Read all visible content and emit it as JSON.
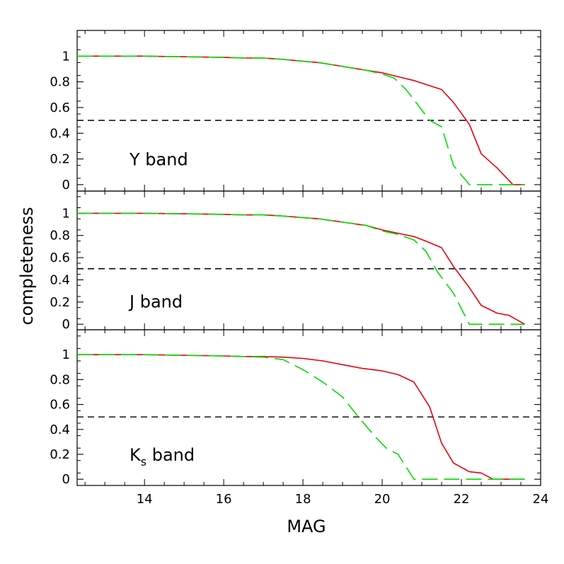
{
  "chart_data": {
    "type": "line",
    "xlabel": "MAG",
    "ylabel": "completeness",
    "xlim": [
      12.3,
      24
    ],
    "ylim": [
      -0.05,
      1.2
    ],
    "x_ticks": [
      14,
      16,
      18,
      20,
      22,
      24
    ],
    "y_ticks": [
      0,
      0.2,
      0.4,
      0.6,
      0.8,
      1
    ],
    "y_tick_labels": [
      "0",
      "0.2",
      "0.4",
      "0.6",
      "0.8",
      "1"
    ],
    "reference_line": {
      "y": 0.5,
      "color": "#000000",
      "style": "dashed"
    },
    "series_colors": {
      "solid": "#e8000b",
      "dashed": "#00dd00"
    },
    "panels": [
      {
        "label": {
          "main": "Y",
          "sub": "",
          "suffix": " band"
        },
        "series": [
          {
            "style": "solid",
            "color": "#e8000b",
            "x": [
              12.3,
              13,
              14,
              15,
              16,
              16.5,
              17,
              17.5,
              18,
              18.4,
              18.8,
              19.2,
              19.6,
              20,
              20.4,
              20.8,
              21.1,
              21.5,
              21.8,
              22.2,
              22.5,
              22.9,
              23.3,
              23.6
            ],
            "y": [
              1,
              1,
              1,
              0.995,
              0.99,
              0.985,
              0.985,
              0.975,
              0.96,
              0.95,
              0.93,
              0.91,
              0.89,
              0.87,
              0.84,
              0.81,
              0.78,
              0.74,
              0.64,
              0.47,
              0.24,
              0.13,
              0,
              0
            ]
          },
          {
            "style": "dashed",
            "color": "#00dd00",
            "x": [
              12.3,
              13,
              14,
              15,
              16,
              16.5,
              17,
              17.5,
              18,
              18.4,
              18.8,
              19.2,
              19.6,
              20,
              20.3,
              20.6,
              20.9,
              21.2,
              21.5,
              21.8,
              22.2,
              22.6,
              23,
              23.6
            ],
            "y": [
              1,
              1,
              1,
              0.995,
              0.99,
              0.985,
              0.985,
              0.975,
              0.96,
              0.95,
              0.93,
              0.91,
              0.89,
              0.86,
              0.83,
              0.74,
              0.62,
              0.5,
              0.45,
              0.15,
              0,
              0,
              0,
              0
            ]
          }
        ]
      },
      {
        "label": {
          "main": "J",
          "sub": "",
          "suffix": " band"
        },
        "series": [
          {
            "style": "solid",
            "color": "#e8000b",
            "x": [
              12.3,
              13,
              14,
              15,
              16,
              16.5,
              17,
              17.5,
              18,
              18.4,
              18.8,
              19.2,
              19.6,
              20,
              20.4,
              20.8,
              21.1,
              21.5,
              21.8,
              22.2,
              22.5,
              22.9,
              23.2,
              23.6
            ],
            "y": [
              1,
              1,
              1,
              0.995,
              0.99,
              0.985,
              0.985,
              0.975,
              0.96,
              0.95,
              0.93,
              0.91,
              0.89,
              0.85,
              0.82,
              0.79,
              0.75,
              0.69,
              0.52,
              0.33,
              0.17,
              0.1,
              0.08,
              0
            ]
          },
          {
            "style": "dashed",
            "color": "#00dd00",
            "x": [
              12.3,
              13,
              14,
              15,
              16,
              16.5,
              17,
              17.5,
              18,
              18.4,
              18.8,
              19.2,
              19.6,
              20,
              20.4,
              20.8,
              21.1,
              21.4,
              21.8,
              22.2,
              22.6,
              23,
              23.6
            ],
            "y": [
              1,
              1,
              1,
              0.995,
              0.99,
              0.985,
              0.985,
              0.975,
              0.96,
              0.95,
              0.93,
              0.91,
              0.89,
              0.84,
              0.81,
              0.76,
              0.66,
              0.47,
              0.28,
              0,
              0,
              0,
              0
            ]
          }
        ]
      },
      {
        "label": {
          "main": "K",
          "sub": "s",
          "suffix": " band"
        },
        "series": [
          {
            "style": "solid",
            "color": "#e8000b",
            "x": [
              12.3,
              13,
              14,
              15,
              16,
              16.5,
              17,
              17.5,
              18,
              18.5,
              19,
              19.5,
              20,
              20.4,
              20.8,
              21.2,
              21.5,
              21.8,
              22.2,
              22.5,
              22.8,
              23.1,
              23.6
            ],
            "y": [
              1,
              1,
              1,
              0.995,
              0.99,
              0.985,
              0.985,
              0.98,
              0.97,
              0.95,
              0.92,
              0.89,
              0.87,
              0.84,
              0.78,
              0.58,
              0.29,
              0.13,
              0.06,
              0.05,
              0,
              0,
              0
            ]
          },
          {
            "style": "dashed",
            "color": "#00dd00",
            "x": [
              12.3,
              13,
              14,
              15,
              16,
              16.5,
              17,
              17.5,
              18,
              18.5,
              19,
              19.4,
              19.8,
              20.1,
              20.4,
              20.8,
              21.2,
              21.8,
              22.4,
              23,
              23.6
            ],
            "y": [
              1,
              1,
              1,
              0.995,
              0.99,
              0.985,
              0.98,
              0.96,
              0.88,
              0.78,
              0.66,
              0.5,
              0.35,
              0.25,
              0.2,
              0,
              0,
              0,
              0,
              0,
              0
            ]
          }
        ]
      }
    ]
  }
}
